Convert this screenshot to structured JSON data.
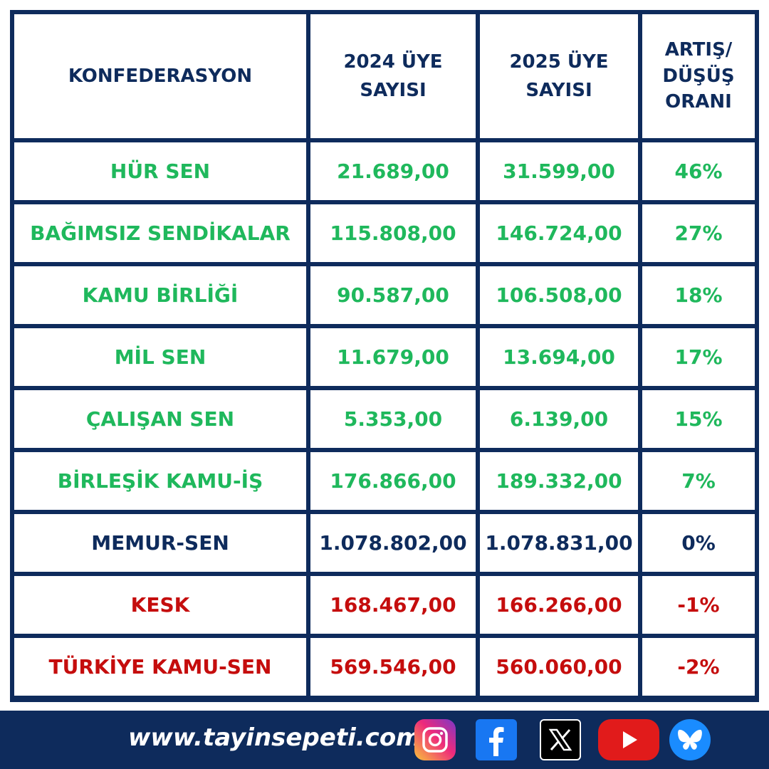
{
  "table": {
    "headers": {
      "col1": "KONFEDERASYON",
      "col2_line1": "2024 ÜYE",
      "col2_line2": "SAYISI",
      "col3_line1": "2025 ÜYE",
      "col3_line2": "SAYISI",
      "col4_line1": "ARTIŞ/",
      "col4_line2": "DÜŞÜŞ",
      "col4_line3": "ORANI"
    },
    "rows": [
      {
        "name": "HÜR SEN",
        "y2024": "21.689,00",
        "y2025": "31.599,00",
        "rate": "46%"
      },
      {
        "name": "BAĞIMSIZ SENDİKALAR",
        "y2024": "115.808,00",
        "y2025": "146.724,00",
        "rate": "27%"
      },
      {
        "name": "KAMU BİRLİĞİ",
        "y2024": "90.587,00",
        "y2025": "106.508,00",
        "rate": "18%"
      },
      {
        "name": "MİL SEN",
        "y2024": "11.679,00",
        "y2025": "13.694,00",
        "rate": "17%"
      },
      {
        "name": "ÇALIŞAN SEN",
        "y2024": "5.353,00",
        "y2025": "6.139,00",
        "rate": "15%"
      },
      {
        "name": "BİRLEŞİK KAMU-İŞ",
        "y2024": "176.866,00",
        "y2025": "189.332,00",
        "rate": "7%"
      },
      {
        "name": "MEMUR-SEN",
        "y2024": "1.078.802,00",
        "y2025": "1.078.831,00",
        "rate": "0%"
      },
      {
        "name": "KESK",
        "y2024": "168.467,00",
        "y2025": "166.266,00",
        "rate": "-1%"
      },
      {
        "name": "TÜRKİYE KAMU-SEN",
        "y2024": "569.546,00",
        "y2025": "560.060,00",
        "rate": "-2%"
      }
    ]
  },
  "colors": {
    "increase": "#1fb85c",
    "neutral": "#0e2b5c",
    "decrease": "#c50d0d"
  },
  "footer": {
    "website": "www.tayinsepeti.com",
    "social_icons": [
      "instagram-icon",
      "facebook-icon",
      "x-icon",
      "youtube-icon",
      "bluesky-icon"
    ]
  }
}
